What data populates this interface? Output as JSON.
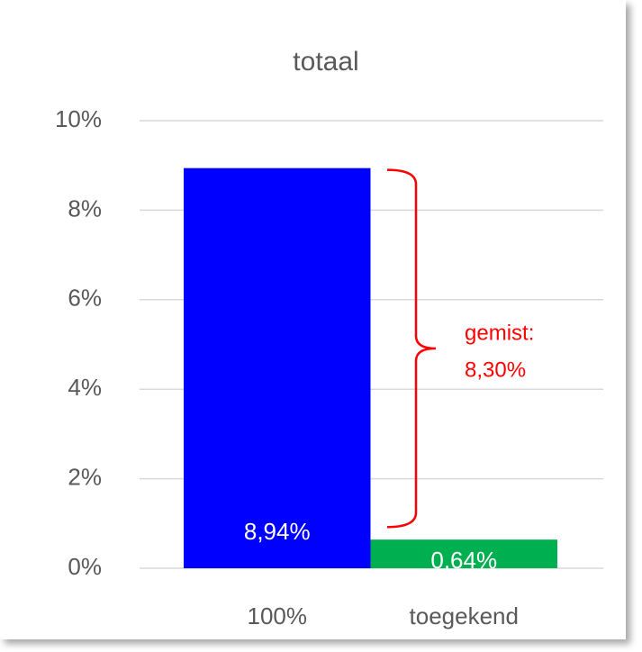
{
  "chart_data": {
    "type": "bar",
    "title": "totaal",
    "categories": [
      "100%",
      "toegekend"
    ],
    "values": [
      8.94,
      0.64
    ],
    "value_labels": [
      "8,94%",
      "0,64%"
    ],
    "colors": [
      "#0000ff",
      "#00b050"
    ],
    "ylim": [
      0,
      10
    ],
    "yticks": [
      {
        "value": 0,
        "label": "0%"
      },
      {
        "value": 2,
        "label": "2%"
      },
      {
        "value": 4,
        "label": "4%"
      },
      {
        "value": 6,
        "label": "6%"
      },
      {
        "value": 8,
        "label": "8%"
      },
      {
        "value": 10,
        "label": "10%"
      }
    ],
    "grid": true,
    "annotations": [
      {
        "text": "gemist:"
      },
      {
        "text": "8,30%"
      }
    ],
    "annotation_color": "#ff0000"
  }
}
